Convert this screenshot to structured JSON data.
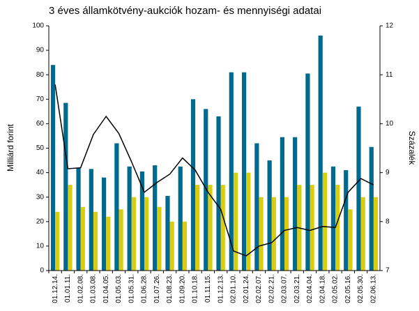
{
  "chart_data": {
    "type": "bar_line",
    "title": "3 éves államkötvény-aukciók hozam- és mennyiségi adatai",
    "ylabel": "Milliárd forint",
    "y2label": "Százalék",
    "categories": [
      "01.12.14.",
      "01.01.11.",
      "01.02.08.",
      "01.03.08.",
      "01.04.05.",
      "01.05.03.",
      "01.05.31.",
      "01.06.28.",
      "01.07.26.",
      "01.08.23.",
      "01.09.20.",
      "01.10.18.",
      "01.11.15.",
      "01.12.13.",
      "02.01.10.",
      "02.01.24.",
      "02.02.07.",
      "02.02.21.",
      "02.03.07.",
      "02.03.21.",
      "02.04.04.",
      "02.04.18.",
      "02.05.02.",
      "02.05.16.",
      "02.05.30.",
      "02.06.13."
    ],
    "series": [
      {
        "type": "bar",
        "color": "#006a8e",
        "values": [
          84,
          68.5,
          42,
          41.5,
          38,
          52,
          42.5,
          40.5,
          43,
          30.5,
          42.5,
          70,
          66,
          63,
          81,
          81,
          52,
          45,
          54.5,
          54.5,
          80.5,
          96,
          42.5,
          41,
          67,
          50.5
        ]
      },
      {
        "type": "bar",
        "color": "#d8cd12",
        "values": [
          24,
          35,
          26,
          24,
          22,
          25,
          30,
          30,
          26,
          20,
          20,
          35,
          35,
          35,
          40,
          40,
          30,
          30,
          30,
          35,
          35,
          40,
          35,
          25,
          30,
          30
        ]
      },
      {
        "type": "line",
        "color": "#000000",
        "axis": "y2",
        "values": [
          10.8,
          9.08,
          9.1,
          9.78,
          10.15,
          9.8,
          9.22,
          8.6,
          8.8,
          8.97,
          9.3,
          9.05,
          8.6,
          8.25,
          7.4,
          7.3,
          7.5,
          7.57,
          7.82,
          7.88,
          7.82,
          7.9,
          7.88,
          8.6,
          8.88,
          8.75
        ]
      }
    ],
    "ylim": [
      0,
      100
    ],
    "yticks": [
      0,
      10,
      20,
      30,
      40,
      50,
      60,
      70,
      80,
      90,
      100
    ],
    "y2lim": [
      7,
      12
    ],
    "y2ticks": [
      7,
      8,
      9,
      10,
      11,
      12
    ],
    "grid": false
  }
}
